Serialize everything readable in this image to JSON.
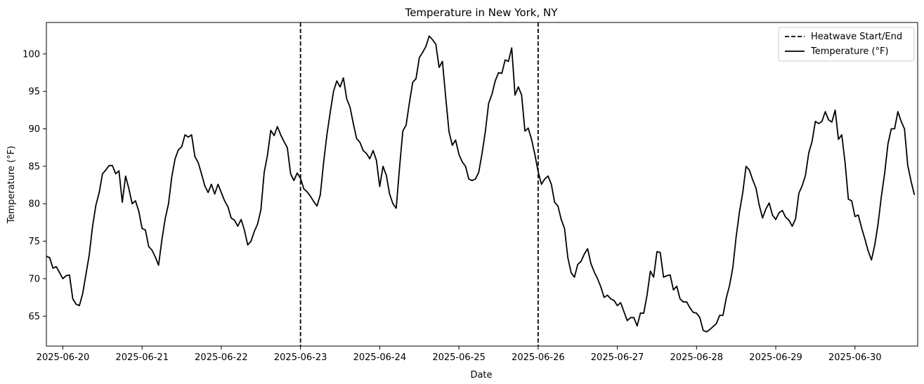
{
  "chart_data": {
    "type": "line",
    "title": "Temperature in New York, NY",
    "xlabel": "Date",
    "ylabel": "Temperature (°F)",
    "x_range": [
      "2025-06-19 19:00",
      "2025-06-30 19:00"
    ],
    "ylim": [
      61,
      104.2
    ],
    "x_ticks": [
      "2025-06-20",
      "2025-06-21",
      "2025-06-22",
      "2025-06-23",
      "2025-06-24",
      "2025-06-25",
      "2025-06-26",
      "2025-06-27",
      "2025-06-28",
      "2025-06-29",
      "2025-06-30"
    ],
    "y_ticks": [
      65,
      70,
      75,
      80,
      85,
      90,
      95,
      100
    ],
    "grid": false,
    "legend_placement": "top-right",
    "line_color": "#000000",
    "markers": [
      {
        "name": "Heatwave Start/End",
        "style": "dashed",
        "x": [
          "2025-06-23 00:00",
          "2025-06-26 00:00"
        ]
      }
    ],
    "series": [
      {
        "name": "Temperature (°F)",
        "style": "solid",
        "x_start": "2025-06-19 19:00",
        "step_hours": 1,
        "values": [
          73.0,
          72.8,
          71.4,
          71.6,
          70.8,
          70.0,
          70.4,
          70.5,
          67.3,
          66.6,
          66.4,
          68.0,
          70.6,
          73.2,
          77.0,
          79.8,
          81.5,
          84.0,
          84.5,
          85.1,
          85.1,
          84.0,
          84.4,
          80.2,
          83.7,
          82.0,
          80.0,
          80.4,
          79.0,
          76.7,
          76.5,
          74.3,
          73.8,
          72.9,
          71.8,
          75.2,
          78.0,
          80.0,
          83.6,
          86.0,
          87.2,
          87.6,
          89.2,
          88.9,
          89.2,
          86.3,
          85.5,
          84.0,
          82.4,
          81.5,
          82.6,
          81.3,
          82.6,
          81.5,
          80.4,
          79.6,
          78.1,
          77.8,
          77.0,
          77.9,
          76.5,
          74.5,
          75.0,
          76.3,
          77.3,
          79.2,
          84.2,
          86.5,
          89.8,
          89.1,
          90.3,
          89.2,
          88.3,
          87.5,
          84.0,
          83.1,
          84.1,
          83.4,
          82.0,
          81.6,
          81.0,
          80.3,
          79.7,
          81.2,
          85.5,
          89.2,
          92.2,
          95.0,
          96.4,
          95.6,
          96.8,
          94.0,
          92.9,
          90.7,
          88.7,
          88.2,
          87.1,
          86.7,
          86.0,
          87.1,
          85.8,
          82.3,
          85.0,
          83.8,
          81.3,
          80.0,
          79.4,
          84.8,
          89.7,
          90.5,
          93.5,
          96.2,
          96.7,
          99.5,
          100.2,
          101.0,
          102.4,
          101.9,
          101.3,
          98.2,
          99.0,
          94.2,
          89.6,
          87.8,
          88.5,
          86.6,
          85.6,
          85.0,
          83.3,
          83.1,
          83.3,
          84.2,
          86.7,
          89.6,
          93.4,
          94.6,
          96.4,
          97.5,
          97.4,
          99.2,
          99.0,
          100.8,
          94.5,
          95.6,
          94.5,
          89.7,
          90.1,
          88.6,
          86.6,
          84.3,
          82.6,
          83.3,
          83.7,
          82.6,
          80.2,
          79.7,
          77.9,
          76.7,
          72.8,
          70.8,
          70.2,
          71.9,
          72.3,
          73.3,
          74.0,
          72.0,
          70.9,
          70.0,
          68.9,
          67.5,
          67.8,
          67.3,
          67.1,
          66.4,
          66.8,
          65.6,
          64.4,
          64.8,
          64.8,
          63.7,
          65.4,
          65.4,
          67.8,
          71.0,
          70.2,
          73.6,
          73.5,
          70.2,
          70.4,
          70.5,
          68.5,
          69.0,
          67.3,
          66.9,
          66.9,
          66.1,
          65.5,
          65.4,
          64.8,
          63.1,
          62.9,
          63.2,
          63.6,
          64.0,
          65.1,
          65.1,
          67.4,
          69.1,
          71.5,
          75.6,
          78.9,
          81.5,
          85.0,
          84.5,
          83.2,
          82.1,
          79.8,
          78.1,
          79.3,
          80.1,
          78.5,
          77.9,
          78.8,
          79.1,
          78.2,
          77.8,
          77.0,
          78.0,
          81.4,
          82.4,
          83.8,
          86.8,
          88.3,
          91.0,
          90.7,
          91.0,
          92.3,
          91.2,
          90.9,
          92.5,
          88.6,
          89.2,
          85.5,
          80.6,
          80.4,
          78.3,
          78.5,
          76.8,
          75.3,
          73.7,
          72.5,
          74.5,
          77.3,
          81.0,
          84.1,
          88.0,
          90.0,
          90.0,
          92.3,
          91.0,
          90.0,
          85.1,
          83.0,
          81.2
        ]
      }
    ]
  }
}
